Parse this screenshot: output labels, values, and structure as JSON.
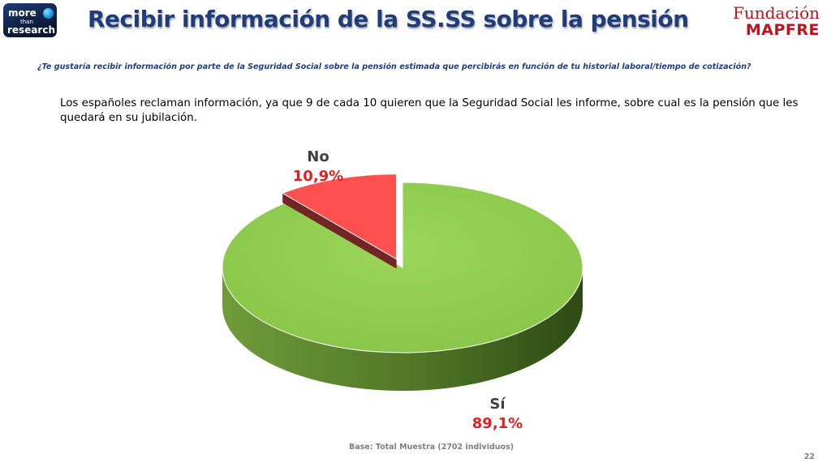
{
  "header": {
    "logo_left": {
      "line1": "more",
      "line2": "than",
      "line3": "research"
    },
    "title": "Recibir información de la SS.SS sobre la pensión",
    "logo_right": {
      "line1": "Fundación",
      "line2": "MAPFRE"
    }
  },
  "question": "¿Te gustaría recibir información por parte de la Seguridad Social sobre la pensión estimada que percibirás en función de tu historial laboral/tiempo de cotización?",
  "summary": "Los españoles reclaman información, ya que 9 de cada 10 quieren que la Seguridad Social les informe, sobre cual es la pensión que les quedará en su jubilación.",
  "chart_data": {
    "type": "pie",
    "title": "",
    "slices": [
      {
        "label": "Sí",
        "value": 89.1,
        "value_label": "89,1%",
        "color": "#92d050"
      },
      {
        "label": "No",
        "value": 10.9,
        "value_label": "10,9%",
        "color": "#ff5050"
      }
    ],
    "label_color": "#404040",
    "value_color": "#e02020",
    "exploded": "No",
    "style": "3d"
  },
  "footer": {
    "base": "Base: Total Muestra (2702 individuos)",
    "page_number": "22"
  }
}
